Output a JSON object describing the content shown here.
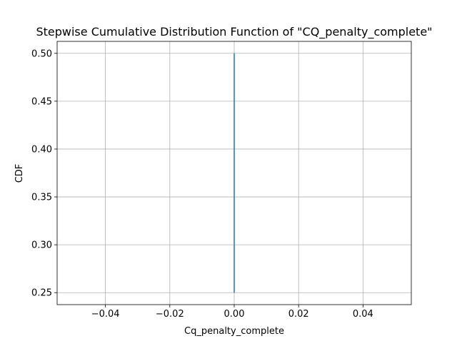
{
  "chart_data": {
    "type": "line",
    "title": "Stepwise Cumulative Distribution Function of \"CQ_penalty_complete\"",
    "xlabel": "Cq_penalty_complete",
    "ylabel": "CDF",
    "xlim": [
      -0.055,
      0.055
    ],
    "ylim": [
      0.2375,
      0.5125
    ],
    "x_ticks": [
      -0.04,
      -0.02,
      0.0,
      0.02,
      0.04
    ],
    "x_tick_labels": [
      "−0.04",
      "−0.02",
      "0.00",
      "0.02",
      "0.04"
    ],
    "y_ticks": [
      0.25,
      0.3,
      0.35,
      0.4,
      0.45,
      0.5
    ],
    "y_tick_labels": [
      "0.25",
      "0.30",
      "0.35",
      "0.40",
      "0.45",
      "0.50"
    ],
    "grid": true,
    "series": [
      {
        "x": [
          0.0,
          0.0
        ],
        "y": [
          0.25,
          0.5
        ],
        "color": "#1f77b4",
        "step": true
      }
    ]
  }
}
